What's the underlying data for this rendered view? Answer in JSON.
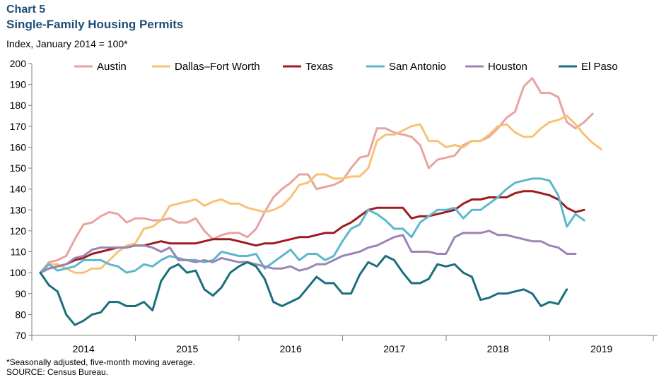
{
  "header": {
    "chart_label": "Chart 5",
    "title": "Single-Family Housing Permits",
    "y_axis_label": "Index, January 2014 = 100*"
  },
  "footer": {
    "footnote": "*Seasonally adjusted, five-month moving average.",
    "source": "SOURCE: Census Bureau."
  },
  "chart_data": {
    "type": "line",
    "title": "Single-Family Housing Permits",
    "ylabel": "Index, January 2014 = 100*",
    "ylim": [
      70,
      200
    ],
    "yticks": [
      70,
      80,
      90,
      100,
      110,
      120,
      130,
      140,
      150,
      160,
      170,
      180,
      190,
      200
    ],
    "x_labels": [
      "2014",
      "2015",
      "2016",
      "2017",
      "2018",
      "2019"
    ],
    "x_start_month": "2014-01",
    "grid": false,
    "legend_position": "top",
    "series": [
      {
        "name": "Austin",
        "color": "#e8a3a0",
        "values": [
          100,
          105,
          106,
          108,
          116,
          123,
          124,
          127,
          129,
          128,
          124,
          126,
          126,
          125,
          125,
          126,
          124,
          124,
          126,
          120,
          116,
          118,
          119,
          119,
          117,
          121,
          129,
          136,
          140,
          143,
          147,
          147,
          140,
          141,
          142,
          144,
          150,
          155,
          156,
          169,
          169,
          167,
          166,
          165,
          161,
          150,
          154,
          155,
          156,
          161,
          163,
          163,
          165,
          169,
          174,
          177,
          189,
          193,
          186,
          186,
          184,
          172,
          169,
          172,
          176
        ]
      },
      {
        "name": "Dallas–Fort Worth",
        "color": "#f7c276",
        "values": [
          100,
          104,
          104,
          102,
          100,
          100,
          102,
          102,
          106,
          110,
          113,
          114,
          121,
          122,
          125,
          132,
          133,
          134,
          135,
          132,
          134,
          135,
          133,
          133,
          131,
          130,
          129,
          130,
          132,
          136,
          142,
          143,
          147,
          147,
          145,
          145,
          146,
          146,
          150,
          163,
          166,
          166,
          168,
          170,
          171,
          163,
          163,
          160,
          161,
          160,
          163,
          163,
          166,
          170,
          171,
          167,
          165,
          165,
          169,
          172,
          173,
          175,
          171,
          166,
          162,
          159
        ]
      },
      {
        "name": "Texas",
        "color": "#9e1b1f",
        "values": [
          100,
          102,
          103,
          104,
          106,
          107,
          109,
          110,
          111,
          112,
          112,
          113,
          113,
          114,
          115,
          114,
          114,
          114,
          114,
          115,
          116,
          116,
          116,
          115,
          114,
          113,
          114,
          114,
          115,
          116,
          117,
          117,
          118,
          119,
          119,
          122,
          124,
          127,
          130,
          131,
          131,
          131,
          131,
          126,
          127,
          127,
          128,
          129,
          130,
          133,
          135,
          135,
          136,
          136,
          136,
          138,
          139,
          139,
          138,
          137,
          135,
          131,
          129,
          130
        ]
      },
      {
        "name": "San Antonio",
        "color": "#5bb8cf",
        "values": [
          100,
          104,
          101,
          102,
          103,
          106,
          106,
          106,
          104,
          103,
          100,
          101,
          104,
          103,
          106,
          108,
          107,
          106,
          106,
          105,
          106,
          110,
          109,
          108,
          108,
          109,
          102,
          105,
          108,
          111,
          106,
          109,
          109,
          106,
          108,
          115,
          121,
          123,
          130,
          128,
          125,
          121,
          121,
          117,
          124,
          127,
          130,
          130,
          131,
          126,
          130,
          130,
          133,
          136,
          140,
          143,
          144,
          145,
          145,
          144,
          137,
          122,
          128,
          125
        ]
      },
      {
        "name": "Houston",
        "color": "#9b84b5",
        "values": [
          100,
          102,
          103,
          104,
          107,
          108,
          111,
          112,
          112,
          112,
          112,
          113,
          113,
          112,
          110,
          112,
          106,
          106,
          105,
          106,
          105,
          107,
          106,
          105,
          105,
          104,
          103,
          102,
          102,
          103,
          101,
          102,
          104,
          104,
          106,
          108,
          109,
          110,
          112,
          113,
          115,
          117,
          118,
          110,
          110,
          110,
          109,
          109,
          117,
          119,
          119,
          119,
          120,
          118,
          118,
          117,
          116,
          115,
          115,
          113,
          112,
          109,
          109
        ]
      },
      {
        "name": "El Paso",
        "color": "#1b6e7c",
        "values": [
          100,
          94,
          91,
          80,
          75,
          77,
          80,
          81,
          86,
          86,
          84,
          84,
          86,
          82,
          96,
          102,
          104,
          100,
          101,
          92,
          89,
          93,
          100,
          103,
          105,
          103,
          97,
          86,
          84,
          86,
          88,
          93,
          98,
          95,
          95,
          90,
          90,
          99,
          105,
          103,
          108,
          106,
          100,
          95,
          95,
          97,
          104,
          103,
          104,
          100,
          98,
          87,
          88,
          90,
          90,
          91,
          92,
          90,
          84,
          86,
          85,
          92
        ]
      }
    ]
  }
}
